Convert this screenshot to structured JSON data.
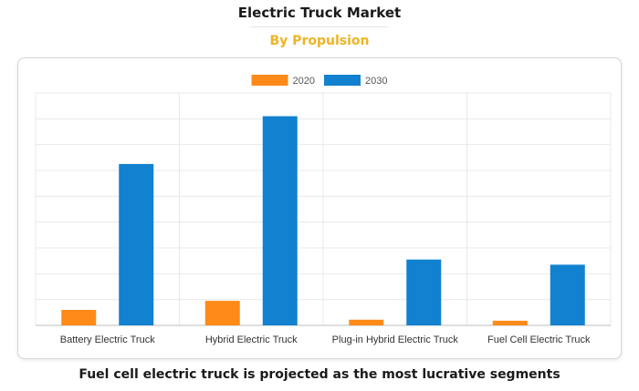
{
  "header": {
    "title": "Electric Truck Market",
    "subtitle": "By Propulsion"
  },
  "colors": {
    "accent": "#f0b323",
    "series_2020": "#fe8a1a",
    "series_2030": "#1281cf",
    "grid": "#e8e8e8"
  },
  "caption": "Fuel cell electric truck is projected as the most lucrative segments",
  "chart_data": {
    "type": "bar",
    "title": "",
    "xlabel": "",
    "ylabel": "",
    "categories": [
      "Battery Electric Truck",
      "Hybrid Electric Truck",
      "Plug-in Hybrid Electric Truck",
      "Fuel Cell Electric Truck"
    ],
    "series": [
      {
        "name": "2020",
        "values": [
          0.6,
          0.95,
          0.22,
          0.18
        ]
      },
      {
        "name": "2030",
        "values": [
          6.25,
          8.1,
          2.55,
          2.35
        ]
      }
    ],
    "ylim": [
      0,
      9
    ],
    "grid": true,
    "legend": "top-center"
  }
}
